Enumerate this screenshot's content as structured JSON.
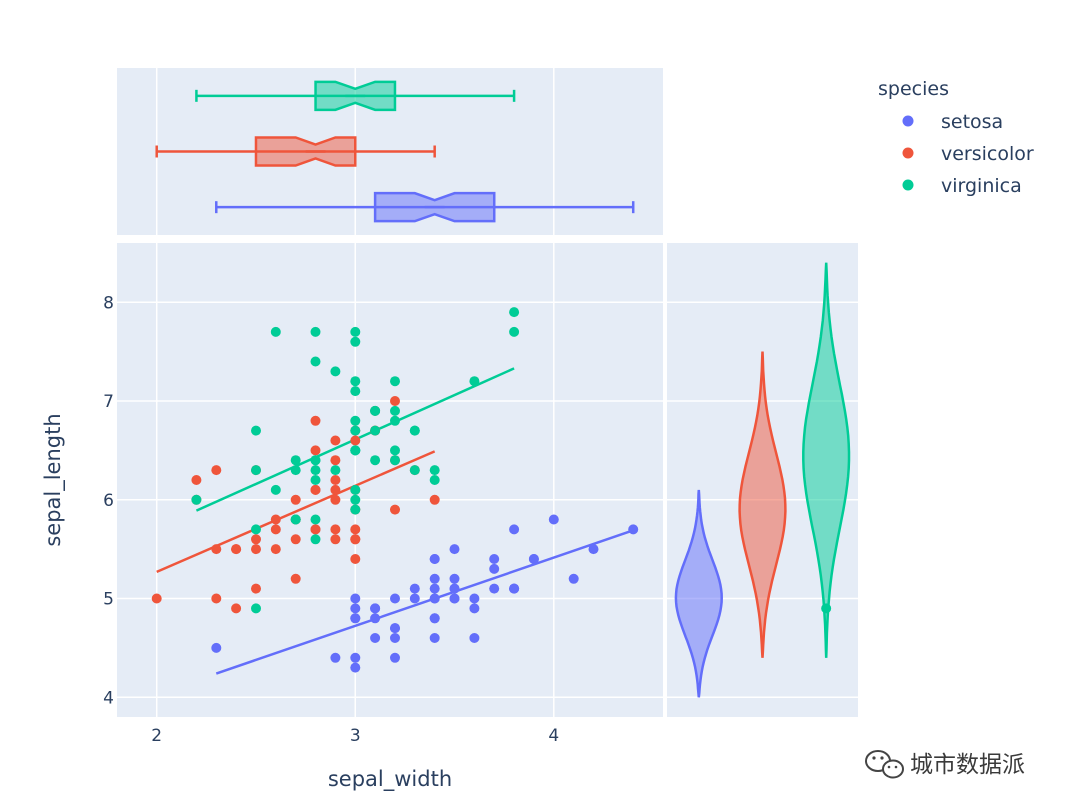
{
  "chart_data": {
    "type": "scatter",
    "xlabel": "sepal_width",
    "ylabel": "sepal_length",
    "xlim": [
      1.8,
      4.55
    ],
    "ylim": [
      3.8,
      8.6
    ],
    "xticks": [
      "2",
      "3",
      "4"
    ],
    "yticks": [
      "4",
      "5",
      "6",
      "7",
      "8"
    ],
    "grid": true,
    "legend": {
      "title": "species",
      "placement": "right"
    },
    "series": [
      {
        "name": "setosa",
        "color": "#636efa",
        "points": [
          [
            3.5,
            5.1
          ],
          [
            3.0,
            4.9
          ],
          [
            3.2,
            4.7
          ],
          [
            3.1,
            4.6
          ],
          [
            3.6,
            5.0
          ],
          [
            3.9,
            5.4
          ],
          [
            3.4,
            4.6
          ],
          [
            3.4,
            5.0
          ],
          [
            2.9,
            4.4
          ],
          [
            3.1,
            4.9
          ],
          [
            3.7,
            5.4
          ],
          [
            3.4,
            4.8
          ],
          [
            3.0,
            4.8
          ],
          [
            3.0,
            4.3
          ],
          [
            4.0,
            5.8
          ],
          [
            4.4,
            5.7
          ],
          [
            3.9,
            5.4
          ],
          [
            3.5,
            5.1
          ],
          [
            3.8,
            5.7
          ],
          [
            3.8,
            5.1
          ],
          [
            3.4,
            5.4
          ],
          [
            3.7,
            5.1
          ],
          [
            3.6,
            4.6
          ],
          [
            3.3,
            5.1
          ],
          [
            3.4,
            4.8
          ],
          [
            3.0,
            5.0
          ],
          [
            3.4,
            5.0
          ],
          [
            3.5,
            5.2
          ],
          [
            3.4,
            5.2
          ],
          [
            3.2,
            4.7
          ],
          [
            3.1,
            4.8
          ],
          [
            3.4,
            5.4
          ],
          [
            4.1,
            5.2
          ],
          [
            4.2,
            5.5
          ],
          [
            3.1,
            4.9
          ],
          [
            3.2,
            5.0
          ],
          [
            3.5,
            5.5
          ],
          [
            3.6,
            4.9
          ],
          [
            3.0,
            4.4
          ],
          [
            3.4,
            5.1
          ],
          [
            3.5,
            5.0
          ],
          [
            2.3,
            4.5
          ],
          [
            3.2,
            4.4
          ],
          [
            3.5,
            5.0
          ],
          [
            3.8,
            5.1
          ],
          [
            3.0,
            4.8
          ],
          [
            3.8,
            5.1
          ],
          [
            3.2,
            4.6
          ],
          [
            3.7,
            5.3
          ],
          [
            3.3,
            5.0
          ]
        ],
        "trend": [
          [
            2.3,
            4.24
          ],
          [
            4.4,
            5.69
          ]
        ],
        "box": {
          "min": 2.3,
          "q1": 3.1,
          "median": 3.4,
          "q3": 3.7,
          "max": 4.4,
          "notch": [
            3.3,
            3.5
          ]
        },
        "violin": {
          "x": "setosa",
          "ymin": 4.0,
          "ymax": 6.1,
          "center": 5.0,
          "width": 0.35,
          "outliers": []
        }
      },
      {
        "name": "versicolor",
        "color": "#ef553b",
        "points": [
          [
            3.2,
            7.0
          ],
          [
            3.2,
            6.4
          ],
          [
            3.1,
            6.9
          ],
          [
            2.3,
            5.5
          ],
          [
            2.8,
            6.5
          ],
          [
            2.8,
            5.7
          ],
          [
            3.3,
            6.3
          ],
          [
            2.4,
            4.9
          ],
          [
            2.9,
            6.6
          ],
          [
            2.7,
            5.2
          ],
          [
            2.0,
            5.0
          ],
          [
            3.0,
            5.9
          ],
          [
            2.2,
            6.0
          ],
          [
            2.9,
            6.1
          ],
          [
            2.9,
            5.6
          ],
          [
            3.1,
            6.7
          ],
          [
            3.0,
            5.6
          ],
          [
            2.7,
            5.8
          ],
          [
            2.2,
            6.2
          ],
          [
            2.5,
            5.6
          ],
          [
            3.2,
            5.9
          ],
          [
            2.8,
            6.1
          ],
          [
            2.5,
            6.3
          ],
          [
            2.8,
            6.1
          ],
          [
            2.9,
            6.4
          ],
          [
            3.0,
            6.6
          ],
          [
            2.8,
            6.8
          ],
          [
            3.0,
            6.7
          ],
          [
            2.9,
            6.0
          ],
          [
            2.6,
            5.7
          ],
          [
            2.4,
            5.5
          ],
          [
            2.4,
            5.5
          ],
          [
            2.7,
            5.8
          ],
          [
            2.7,
            6.0
          ],
          [
            3.0,
            5.4
          ],
          [
            3.4,
            6.0
          ],
          [
            3.1,
            6.7
          ],
          [
            2.3,
            6.3
          ],
          [
            3.0,
            5.6
          ],
          [
            2.5,
            5.5
          ],
          [
            2.6,
            5.5
          ],
          [
            3.0,
            6.1
          ],
          [
            2.6,
            5.8
          ],
          [
            2.3,
            5.0
          ],
          [
            2.7,
            5.6
          ],
          [
            3.0,
            5.7
          ],
          [
            2.9,
            5.7
          ],
          [
            2.9,
            6.2
          ],
          [
            2.5,
            5.1
          ],
          [
            2.8,
            5.7
          ]
        ],
        "trend": [
          [
            2.0,
            5.27
          ],
          [
            3.4,
            6.49
          ]
        ],
        "box": {
          "min": 2.0,
          "q1": 2.5,
          "median": 2.8,
          "q3": 3.0,
          "max": 3.4,
          "notch": [
            2.7,
            2.9
          ]
        },
        "violin": {
          "x": "versicolor",
          "ymin": 4.4,
          "ymax": 7.5,
          "center": 5.9,
          "width": 0.35,
          "outliers": []
        }
      },
      {
        "name": "virginica",
        "color": "#00cc96",
        "points": [
          [
            3.3,
            6.3
          ],
          [
            2.7,
            5.8
          ],
          [
            3.0,
            7.1
          ],
          [
            2.9,
            6.3
          ],
          [
            3.0,
            6.5
          ],
          [
            3.0,
            7.6
          ],
          [
            2.5,
            4.9
          ],
          [
            2.9,
            7.3
          ],
          [
            2.5,
            6.7
          ],
          [
            3.6,
            7.2
          ],
          [
            3.2,
            6.5
          ],
          [
            2.7,
            6.4
          ],
          [
            3.0,
            6.8
          ],
          [
            2.5,
            5.7
          ],
          [
            2.8,
            5.8
          ],
          [
            3.2,
            6.4
          ],
          [
            3.0,
            6.5
          ],
          [
            3.8,
            7.7
          ],
          [
            2.6,
            7.7
          ],
          [
            2.2,
            6.0
          ],
          [
            3.2,
            6.9
          ],
          [
            2.8,
            5.6
          ],
          [
            2.8,
            7.7
          ],
          [
            2.7,
            6.3
          ],
          [
            3.3,
            6.7
          ],
          [
            3.2,
            7.2
          ],
          [
            2.8,
            6.2
          ],
          [
            3.0,
            6.1
          ],
          [
            2.8,
            6.4
          ],
          [
            3.0,
            7.2
          ],
          [
            2.8,
            7.4
          ],
          [
            3.8,
            7.9
          ],
          [
            2.8,
            6.4
          ],
          [
            2.8,
            6.3
          ],
          [
            2.6,
            6.1
          ],
          [
            3.0,
            7.7
          ],
          [
            3.4,
            6.3
          ],
          [
            3.1,
            6.4
          ],
          [
            3.0,
            6.0
          ],
          [
            3.1,
            6.9
          ],
          [
            3.1,
            6.7
          ],
          [
            3.1,
            6.9
          ],
          [
            2.7,
            5.8
          ],
          [
            3.2,
            6.8
          ],
          [
            3.3,
            6.7
          ],
          [
            3.0,
            6.7
          ],
          [
            2.5,
            6.3
          ],
          [
            3.0,
            6.5
          ],
          [
            3.4,
            6.2
          ],
          [
            3.0,
            5.9
          ]
        ],
        "trend": [
          [
            2.2,
            5.89
          ],
          [
            3.8,
            7.33
          ]
        ],
        "box": {
          "min": 2.2,
          "q1": 2.8,
          "median": 3.0,
          "q3": 3.2,
          "max": 3.8,
          "notch": [
            2.9,
            3.1
          ]
        },
        "violin": {
          "x": "virginica",
          "ymin": 4.4,
          "ymax": 8.4,
          "center": 6.45,
          "width": 0.35,
          "outliers": [
            4.9
          ]
        }
      }
    ]
  },
  "watermark": {
    "text": "城市数据派",
    "icon": "wechat-icon"
  }
}
